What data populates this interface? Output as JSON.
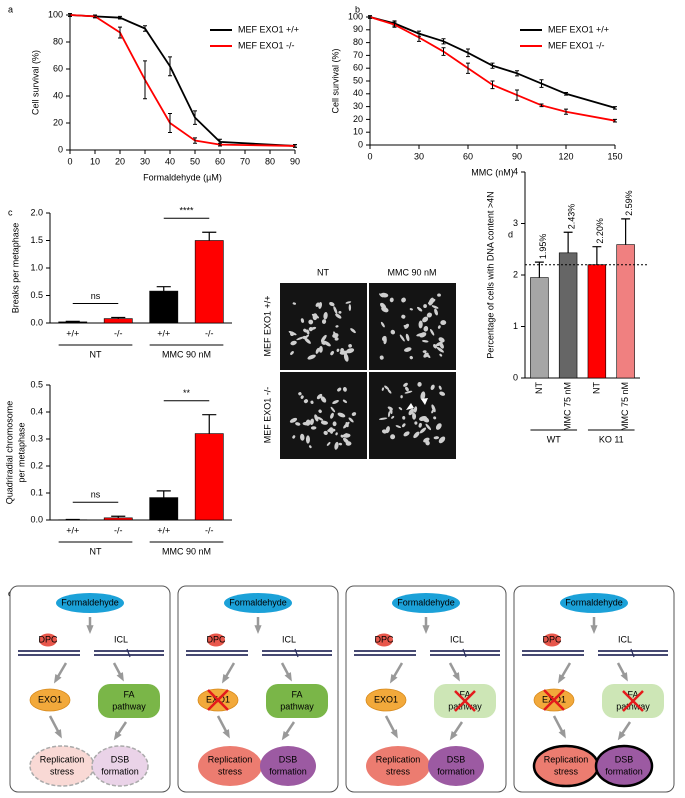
{
  "chart_data": [
    {
      "type": "line",
      "panel": "a",
      "x": [
        0,
        10,
        20,
        30,
        40,
        50,
        60,
        90
      ],
      "series": [
        {
          "name": "MEF EXO1 +/+",
          "color": "#000000",
          "values": [
            100,
            99,
            98,
            90,
            62,
            24,
            6,
            3
          ],
          "errors": [
            1,
            1,
            1,
            2,
            7,
            5,
            2,
            1
          ]
        },
        {
          "name": "MEF EXO1 -/-",
          "color": "#ff0000",
          "values": [
            100,
            99,
            87,
            52,
            20,
            7,
            4,
            3
          ],
          "errors": [
            1,
            1,
            4,
            14,
            7,
            2,
            1,
            1
          ]
        }
      ],
      "xlim": [
        0,
        90
      ],
      "xticks": [
        0,
        10,
        20,
        30,
        40,
        50,
        60,
        70,
        80,
        90
      ],
      "ylim": [
        0,
        100
      ],
      "yticks": [
        0,
        20,
        40,
        60,
        80,
        100
      ],
      "xlabel": "Formaldehyde (µM)",
      "ylabel": "Cell survival (%)",
      "legend": "upper right"
    },
    {
      "type": "line",
      "panel": "b",
      "x": [
        0,
        15,
        30,
        45,
        60,
        75,
        90,
        105,
        120,
        150
      ],
      "series": [
        {
          "name": "MEF EXO1 +/+",
          "color": "#000000",
          "values": [
            100,
            95,
            87,
            81,
            72,
            62,
            56,
            48,
            40,
            29
          ],
          "errors": [
            1,
            2,
            2,
            2,
            3,
            2,
            2,
            3,
            1,
            1
          ]
        },
        {
          "name": "MEF EXO1 -/-",
          "color": "#ff0000",
          "values": [
            100,
            94,
            84,
            73,
            60,
            47,
            39,
            31,
            26,
            19
          ],
          "errors": [
            1,
            2,
            3,
            3,
            4,
            3,
            4,
            1,
            2,
            1
          ]
        }
      ],
      "xlim": [
        0,
        150
      ],
      "xticks": [
        0,
        30,
        60,
        90,
        120,
        150
      ],
      "ylim": [
        0,
        100
      ],
      "yticks": [
        0,
        10,
        20,
        30,
        40,
        50,
        60,
        70,
        80,
        90,
        100
      ],
      "xlabel": "MMC (nM)",
      "ylabel": "Cell survival (%)",
      "legend": "upper right"
    },
    {
      "type": "bar",
      "panel": "c",
      "categories": [
        "+/+",
        "-/-",
        "+/+",
        "-/-"
      ],
      "groups": [
        "NT",
        "MMC 90 nM"
      ],
      "values": [
        0.02,
        0.08,
        0.58,
        1.5
      ],
      "errors": [
        0.01,
        0.02,
        0.08,
        0.15
      ],
      "colors": [
        "#000000",
        "#ff0000",
        "#000000",
        "#ff0000"
      ],
      "ylim": [
        0,
        2
      ],
      "yticks": [
        {
          "value": 0,
          "label": "0.0"
        },
        0.5,
        {
          "value": 1,
          "label": "1.0"
        },
        1.5,
        {
          "value": 2,
          "label": "2.0"
        }
      ],
      "ylabel": [
        "Breaks per metaphase"
      ],
      "annotations": [
        "ns",
        "****"
      ]
    },
    {
      "type": "bar",
      "categories": [
        "+/+",
        "-/-",
        "+/+",
        "-/-"
      ],
      "groups": [
        "NT",
        "MMC 90 nM"
      ],
      "values": [
        0.001,
        0.008,
        0.083,
        0.32
      ],
      "errors": [
        0.001,
        0.006,
        0.025,
        0.07
      ],
      "colors": [
        "#000000",
        "#ff0000",
        "#000000",
        "#ff0000"
      ],
      "ylim": [
        0,
        0.5
      ],
      "yticks": [
        {
          "value": 0,
          "label": "0.0"
        },
        0.1,
        0.2,
        0.3,
        0.4,
        0.5
      ],
      "ylabel": [
        "Quadriradial chromosome",
        "per metaphase"
      ],
      "annotations": [
        "ns",
        "**"
      ]
    },
    {
      "type": "bar",
      "panel": "d",
      "categories": [
        "NT",
        "MMC 75 nM",
        "NT",
        "MMC 75 nM"
      ],
      "groups": [
        "WT",
        "KO 11"
      ],
      "values": [
        1.95,
        2.43,
        2.2,
        2.59
      ],
      "value_labels": [
        "1.95%",
        "2.43%",
        "2.20%",
        "2.59%"
      ],
      "errors": [
        0.3,
        0.4,
        0.35,
        0.5
      ],
      "colors": [
        "#a6a6a6",
        "#666666",
        "#ff0000",
        "#f08080"
      ],
      "ylim": [
        0,
        4
      ],
      "yticks": [
        0,
        1,
        2,
        3,
        4
      ],
      "hline": 2.2,
      "ylabel": [
        "Percentage of cells with DNA content >4N"
      ]
    }
  ],
  "micrograph": {
    "col_labels": [
      "NT",
      "MMC 90 nM"
    ],
    "row_labels": [
      "MEF EXO1 +/+",
      "MEF EXO1 -/-"
    ]
  },
  "diagram": {
    "panel": "e",
    "boxes": [
      {
        "inducer": "Formaldehyde",
        "dpc": "DPC",
        "icl": "ICL",
        "exo1": "EXO1",
        "fa": [
          "FA",
          "pathway"
        ],
        "outcome1": [
          "Replication",
          "stress"
        ],
        "outcome2": [
          "DSB",
          "formation"
        ]
      },
      {
        "inducer": "Formaldehyde",
        "dpc": "DPC",
        "icl": "ICL",
        "exo1": "EXO1",
        "fa": [
          "FA",
          "pathway"
        ],
        "outcome1": [
          "Replication",
          "stress"
        ],
        "outcome2": [
          "DSB",
          "formation"
        ]
      },
      {
        "inducer": "Formaldehyde",
        "dpc": "DPC",
        "icl": "ICL",
        "exo1": "EXO1",
        "fa": [
          "FA",
          "pathway"
        ],
        "outcome1": [
          "Replication",
          "stress"
        ],
        "outcome2": [
          "DSB",
          "formation"
        ]
      },
      {
        "inducer": "Formaldehyde",
        "dpc": "DPC",
        "icl": "ICL",
        "exo1": "EXO1",
        "fa": [
          "FA",
          "pathway"
        ],
        "outcome1": [
          "Replication",
          "stress"
        ],
        "outcome2": [
          "DSB",
          "formation"
        ]
      }
    ]
  }
}
